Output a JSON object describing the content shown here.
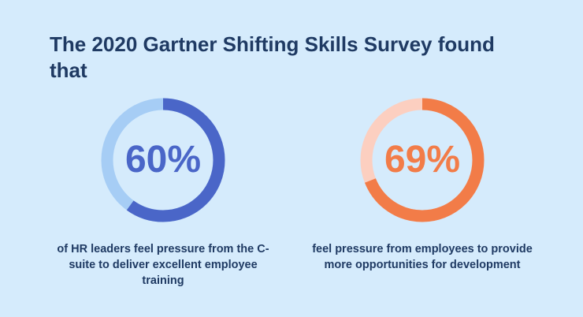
{
  "title": "The 2020 Gartner Shifting Skills Survey found that",
  "colors": {
    "background": "#d5ebfc",
    "title": "#1f3a63",
    "blue_fill": "#4a66c8",
    "blue_track": "#a6cdf5",
    "orange_fill": "#f27c48",
    "orange_track": "#fccfc0"
  },
  "chart_data": [
    {
      "type": "pie",
      "value": 60,
      "unit": "%",
      "label": "60%",
      "description": "of HR leaders feel pressure from the C-suite to deliver excellent employee training"
    },
    {
      "type": "pie",
      "value": 69,
      "unit": "%",
      "label": "69%",
      "description": "feel pressure from employees to provide more opportunities for development"
    }
  ]
}
